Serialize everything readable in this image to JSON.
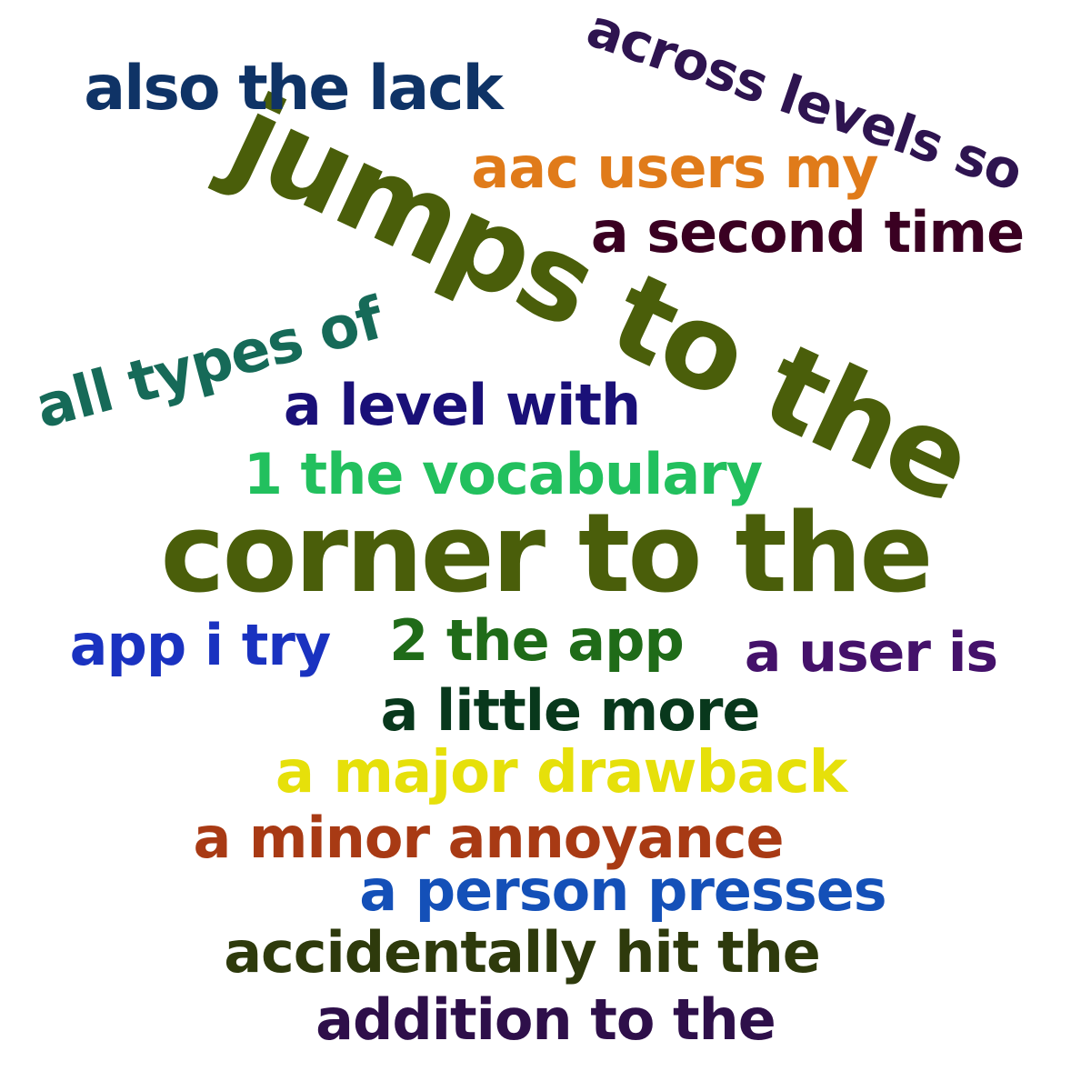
{
  "cloud": {
    "background": "#ffffff",
    "words": {
      "jumps": {
        "text": "jumps to the",
        "color": "#4a5e0a"
      },
      "corner": {
        "text": "corner to the",
        "color": "#4a5e0a"
      },
      "across": {
        "text": "across levels so",
        "color": "#2e1450"
      },
      "also": {
        "text": "also the lack",
        "color": "#0f3366"
      },
      "aac": {
        "text": "aac users my",
        "color": "#e07b1a"
      },
      "second": {
        "text": "a second time",
        "color": "#3a0022"
      },
      "alltypes": {
        "text": "all types of",
        "color": "#166a58"
      },
      "level": {
        "text": "a level with",
        "color": "#1a1078"
      },
      "vocab": {
        "text": "1 the vocabulary",
        "color": "#22c05e"
      },
      "apptry": {
        "text": "app i try",
        "color": "#1a32c0"
      },
      "twoapp": {
        "text": "2 the app",
        "color": "#1f6b18"
      },
      "user": {
        "text": "a user is",
        "color": "#44116a"
      },
      "little": {
        "text": "a little more",
        "color": "#08381c"
      },
      "major": {
        "text": "a major drawback",
        "color": "#e6e00a"
      },
      "minor": {
        "text": "a minor annoyance",
        "color": "#a83a14"
      },
      "person": {
        "text": "a person presses",
        "color": "#1450b8"
      },
      "accident": {
        "text": "accidentally hit the",
        "color": "#2e3a0c"
      },
      "addition": {
        "text": "addition to the",
        "color": "#2e0f4a"
      }
    }
  }
}
